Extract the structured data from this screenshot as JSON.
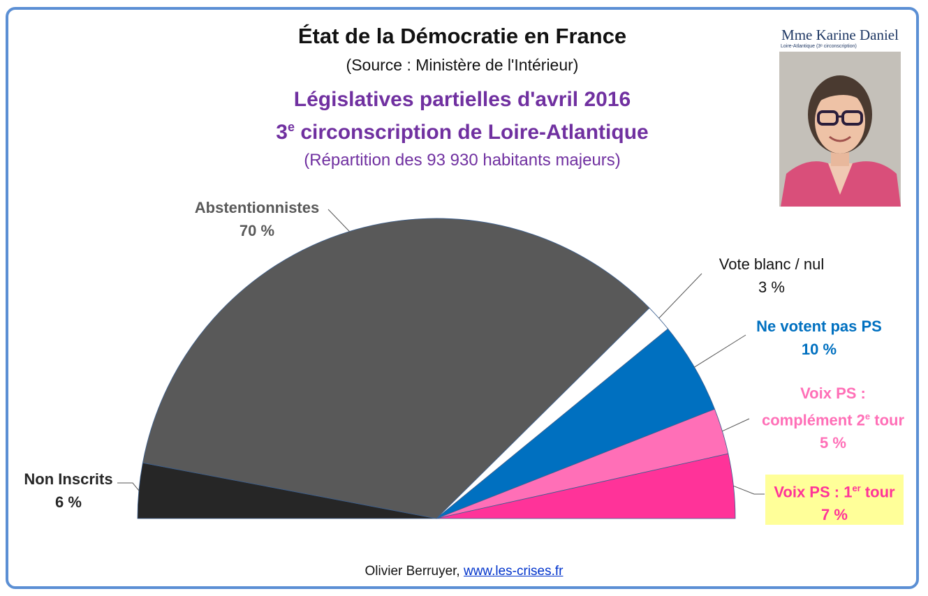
{
  "header": {
    "title": "État de la Démocratie en France",
    "source": "(Source : Ministère de l'Intérieur)",
    "subtitle_line1": "Législatives partielles d'avril 2016",
    "subtitle_line2_prefix": "3",
    "subtitle_line2_sup": "e",
    "subtitle_line2_rest": " circonscription de Loire-Atlantique",
    "subtitle_line3": "(Répartition des 93 930 habitants majeurs)"
  },
  "photo": {
    "name": "Mme Karine Daniel",
    "caption": "Loire-Atlantique (3ᵉ circonscription)"
  },
  "footer": {
    "author": "Olivier Berruyer,",
    "link": "www.les-crises.fr"
  },
  "colors": {
    "frame": "#5b8fd4",
    "title_purple": "#7030a0",
    "non_inscrits": "#262626",
    "abstention": "#595959",
    "blanc_nul": "#ffffff",
    "ne_votent_pas_ps": "#0070c0",
    "ps_2e_tour": "#ff6fb7",
    "ps_1er_tour": "#ff3399",
    "highlight": "#ffff99"
  },
  "chart_data": {
    "type": "pie",
    "variant": "half-pie",
    "slices": [
      {
        "name": "Non Inscrits",
        "value": 6,
        "label_value": "6 %",
        "color": "#262626"
      },
      {
        "name": "Abstentionnistes",
        "value": 70,
        "label_value": "70 %",
        "color": "#595959"
      },
      {
        "name": "Vote blanc / nul",
        "value": 3,
        "label_value": "3 %",
        "color": "#ffffff"
      },
      {
        "name": "Ne votent pas PS",
        "value": 10,
        "label_value": "10 %",
        "color": "#0070c0"
      },
      {
        "name": "Voix PS : complément 2e tour",
        "value": 5,
        "label_value": "5 %",
        "color": "#ff6fb7"
      },
      {
        "name": "Voix PS : 1er tour",
        "value": 7,
        "label_value": "7 %",
        "color": "#ff3399"
      }
    ],
    "labels": {
      "non_inscrits": {
        "line1": "Non Inscrits",
        "line2": "6 %"
      },
      "abstention": {
        "line1": "Abstentionnistes",
        "line2": "70 %"
      },
      "blanc": {
        "line1": "Vote blanc / nul",
        "line2": "3 %"
      },
      "ne_votent": {
        "line1": "Ne votent pas PS",
        "line2": "10 %"
      },
      "ps2": {
        "line1": "Voix PS :",
        "line2_prefix": "complément 2",
        "line2_sup": "e",
        "line2_rest": " tour",
        "line3": "5 %"
      },
      "ps1": {
        "line1_prefix": "Voix PS : 1",
        "line1_sup": "er",
        "line1_rest": " tour",
        "line2": "7 %"
      }
    }
  }
}
